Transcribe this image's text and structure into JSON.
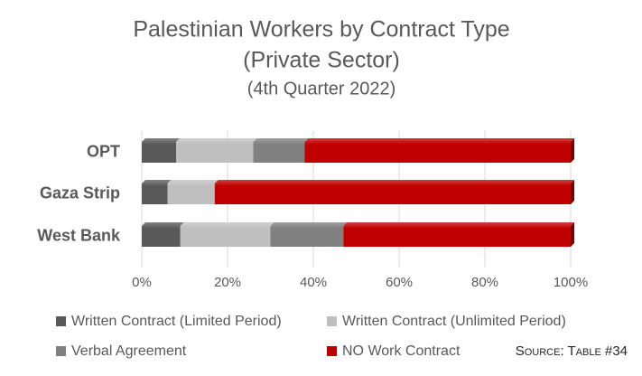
{
  "chart_data": {
    "type": "stacked-bar-horizontal",
    "title_lines": [
      "Palestinian Workers by Contract Type",
      "(Private Sector)"
    ],
    "subtitle": "(4th Quarter 2022)",
    "categories": [
      "OPT",
      "Gaza Strip",
      "West Bank"
    ],
    "series": [
      {
        "name": "Written Contract (Limited Period)",
        "color": "#595959",
        "values": [
          8,
          6,
          9
        ]
      },
      {
        "name": "Written Contract (Unlimited Period)",
        "color": "#bfbfbf",
        "values": [
          18,
          11,
          21
        ]
      },
      {
        "name": "Verbal Agreement",
        "color": "#808080",
        "values": [
          12,
          0,
          17
        ]
      },
      {
        "name": "NO Work Contract",
        "color": "#c00000",
        "values": [
          62,
          83,
          53
        ]
      }
    ],
    "xlim": [
      0,
      100
    ],
    "xticks": [
      {
        "value": 0,
        "label": "0%"
      },
      {
        "value": 20,
        "label": "20%"
      },
      {
        "value": 40,
        "label": "40%"
      },
      {
        "value": 60,
        "label": "60%"
      },
      {
        "value": 80,
        "label": "80%"
      },
      {
        "value": 100,
        "label": "100%"
      }
    ],
    "grid": true,
    "legend": "bottom",
    "source": "Source: Table #34"
  }
}
